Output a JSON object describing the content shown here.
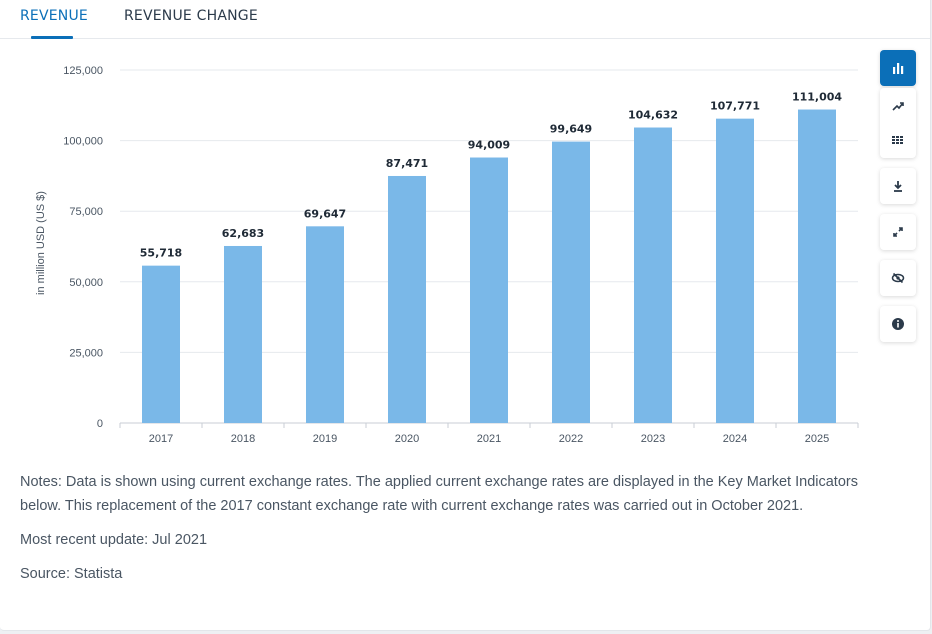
{
  "tabs": [
    {
      "label": "REVENUE",
      "active": true
    },
    {
      "label": "REVENUE CHANGE",
      "active": false
    }
  ],
  "toolbar": {
    "icons": [
      "bar-chart-icon",
      "line-chart-icon",
      "table-grid-icon",
      "download-icon",
      "fullscreen-icon",
      "hide-icon",
      "info-icon"
    ],
    "accent": "#0b6fb8"
  },
  "chart_data": {
    "type": "bar",
    "categories": [
      "2017",
      "2018",
      "2019",
      "2020",
      "2021",
      "2022",
      "2023",
      "2024",
      "2025"
    ],
    "values": [
      55718,
      62683,
      69647,
      87471,
      94009,
      99649,
      104632,
      107771,
      111004
    ],
    "value_labels": [
      "55,718",
      "62,683",
      "69,647",
      "87,471",
      "94,009",
      "99,649",
      "104,632",
      "107,771",
      "111,004"
    ],
    "ylabel": "in million USD (US $)",
    "ylim": [
      0,
      125000
    ],
    "yticks": [
      0,
      25000,
      50000,
      75000,
      100000,
      125000
    ],
    "ytick_labels": [
      "0",
      "25,000",
      "50,000",
      "75,000",
      "100,000",
      "125,000"
    ],
    "grid": true,
    "bar_color": "#7ab8e8"
  },
  "notes": {
    "text": "Notes: Data is shown using current exchange rates. The applied current exchange rates are displayed in the Key Market Indicators below. This replacement of the 2017 constant exchange rate with current exchange rates was carried out in October 2021.",
    "update": "Most recent update: Jul 2021",
    "source": "Source: Statista"
  }
}
